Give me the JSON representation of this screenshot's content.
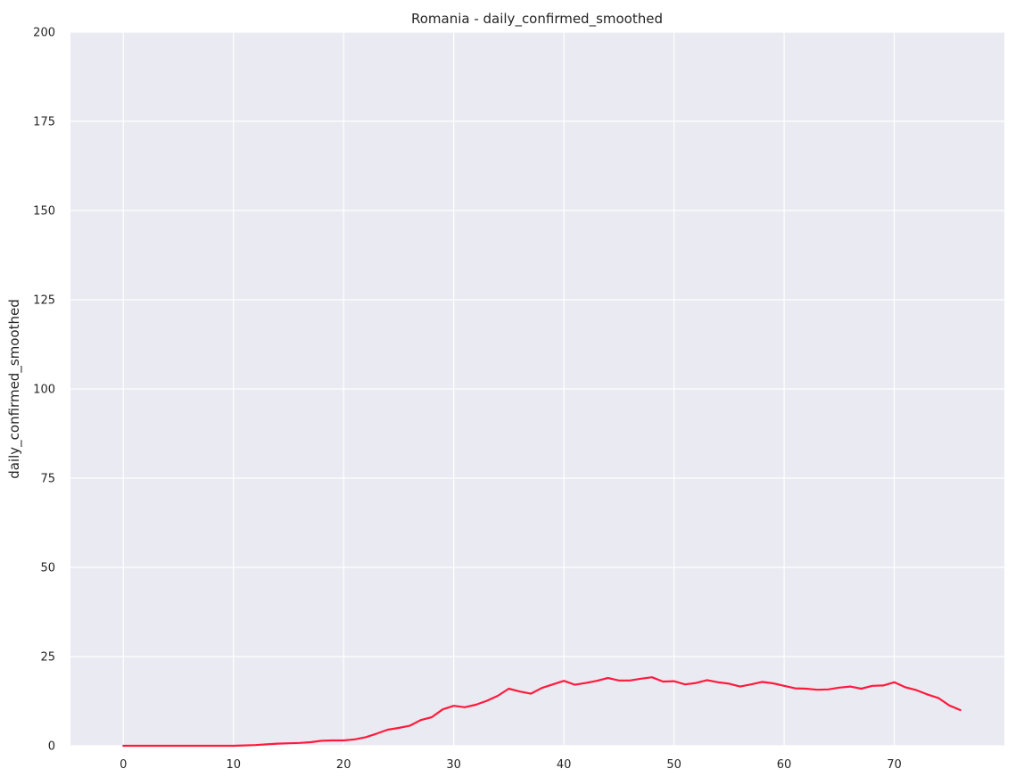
{
  "chart_data": {
    "type": "line",
    "title": "Romania - daily_confirmed_smoothed",
    "xlabel": "",
    "ylabel": "daily_confirmed_smoothed",
    "xlim": [
      -4.8,
      80
    ],
    "ylim": [
      0,
      200
    ],
    "xticks": [
      0,
      10,
      20,
      30,
      40,
      50,
      60,
      70
    ],
    "yticks": [
      0,
      25,
      50,
      75,
      100,
      125,
      150,
      175,
      200
    ],
    "grid": true,
    "legend": "none",
    "colors": {
      "background": "#eaeaf2",
      "grid": "#ffffff",
      "line": "#ff1a3c"
    },
    "series": [
      {
        "color": "#ff1a3c",
        "x": [
          0,
          1,
          2,
          3,
          4,
          5,
          6,
          7,
          8,
          9,
          10,
          11,
          12,
          13,
          14,
          15,
          16,
          17,
          18,
          19,
          20,
          21,
          22,
          23,
          24,
          25,
          26,
          27,
          28,
          29,
          30,
          31,
          32,
          33,
          34,
          35,
          36,
          37,
          38,
          39,
          40,
          41,
          42,
          43,
          44,
          45,
          46,
          47,
          48,
          49,
          50,
          51,
          52,
          53,
          54,
          55,
          56,
          57,
          58,
          59,
          60,
          61,
          62,
          63,
          64,
          65,
          66,
          67,
          68,
          69,
          70,
          71,
          72,
          73,
          74,
          75,
          76
        ],
        "y": [
          0,
          0,
          0,
          0,
          0,
          0,
          0,
          0,
          0,
          0,
          0,
          0.1,
          0.2,
          0.4,
          0.6,
          0.7,
          0.8,
          1.0,
          1.4,
          1.5,
          1.5,
          1.8,
          2.4,
          3.4,
          4.5,
          5.0,
          5.6,
          7.2,
          8.0,
          10.2,
          11.2,
          10.8,
          11.5,
          12.6,
          14.0,
          16.0,
          15.2,
          14.6,
          16.2,
          17.2,
          18.2,
          17.1,
          17.6,
          18.2,
          19.0,
          18.3,
          18.3,
          18.8,
          19.2,
          18.0,
          18.1,
          17.2,
          17.6,
          18.4,
          17.8,
          17.4,
          16.6,
          17.2,
          17.9,
          17.5,
          16.8,
          16.1,
          16.0,
          15.7,
          15.8,
          16.3,
          16.6,
          16.0,
          16.8,
          16.9,
          17.8,
          16.4,
          15.6,
          14.4,
          13.4,
          11.3,
          10.0
        ]
      }
    ]
  }
}
